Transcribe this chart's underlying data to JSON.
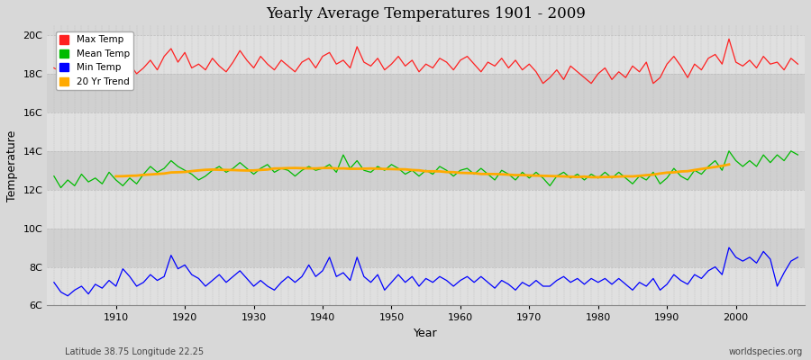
{
  "title": "Yearly Average Temperatures 1901 - 2009",
  "xlabel": "Year",
  "ylabel": "Temperature",
  "start_year": 1901,
  "end_year": 2009,
  "lat": "Latitude 38.75 Longitude 22.25",
  "watermark": "worldspecies.org",
  "ylim": [
    6,
    20.5
  ],
  "yticks": [
    6,
    8,
    10,
    12,
    14,
    16,
    18,
    20
  ],
  "ytick_labels": [
    "6C",
    "8C",
    "10C",
    "12C",
    "14C",
    "16C",
    "18C",
    "20C"
  ],
  "bg_color": "#d8d8d8",
  "plot_bg_color": "#d8d8d8",
  "band_color_light": "#e8e8e8",
  "band_color_dark": "#d0d0d0",
  "grid_color": "#bbbbbb",
  "colors": {
    "max": "#ff2020",
    "mean": "#00bb00",
    "min": "#0000ff",
    "trend": "#ffaa00"
  },
  "legend_labels": [
    "Max Temp",
    "Mean Temp",
    "Min Temp",
    "20 Yr Trend"
  ],
  "max_temps": [
    18.3,
    18.1,
    18.5,
    18.0,
    18.6,
    18.2,
    18.8,
    18.4,
    19.2,
    18.7,
    18.1,
    18.5,
    18.0,
    18.3,
    18.7,
    18.2,
    18.9,
    19.3,
    18.6,
    19.1,
    18.3,
    18.5,
    18.2,
    18.8,
    18.4,
    18.1,
    18.6,
    19.2,
    18.7,
    18.3,
    18.9,
    18.5,
    18.2,
    18.7,
    18.4,
    18.1,
    18.6,
    18.8,
    18.3,
    18.9,
    19.1,
    18.5,
    18.7,
    18.3,
    19.4,
    18.6,
    18.4,
    18.8,
    18.2,
    18.5,
    18.9,
    18.4,
    18.7,
    18.1,
    18.5,
    18.3,
    18.8,
    18.6,
    18.2,
    18.7,
    18.9,
    18.5,
    18.1,
    18.6,
    18.4,
    18.8,
    18.3,
    18.7,
    18.2,
    18.5,
    18.1,
    17.5,
    17.8,
    18.2,
    17.7,
    18.4,
    18.1,
    17.8,
    17.5,
    18.0,
    18.3,
    17.7,
    18.1,
    17.8,
    18.4,
    18.1,
    18.6,
    17.5,
    17.8,
    18.5,
    18.9,
    18.4,
    17.8,
    18.5,
    18.2,
    18.8,
    19.0,
    18.5,
    19.8,
    18.6,
    18.4,
    18.7,
    18.3,
    18.9,
    18.5,
    18.6,
    18.2,
    18.8,
    18.5
  ],
  "mean_temps": [
    12.7,
    12.1,
    12.5,
    12.2,
    12.8,
    12.4,
    12.6,
    12.3,
    12.9,
    12.5,
    12.2,
    12.6,
    12.3,
    12.8,
    13.2,
    12.9,
    13.1,
    13.5,
    13.2,
    13.0,
    12.8,
    12.5,
    12.7,
    13.0,
    13.2,
    12.9,
    13.1,
    13.4,
    13.1,
    12.8,
    13.1,
    13.3,
    12.9,
    13.1,
    13.0,
    12.7,
    13.0,
    13.2,
    13.0,
    13.1,
    13.3,
    12.9,
    13.8,
    13.1,
    13.5,
    13.0,
    12.9,
    13.2,
    13.0,
    13.3,
    13.1,
    12.8,
    13.0,
    12.7,
    13.0,
    12.8,
    13.2,
    13.0,
    12.7,
    13.0,
    13.1,
    12.8,
    13.1,
    12.8,
    12.5,
    13.0,
    12.8,
    12.5,
    12.9,
    12.6,
    12.9,
    12.6,
    12.2,
    12.7,
    12.9,
    12.6,
    12.8,
    12.5,
    12.8,
    12.6,
    12.9,
    12.6,
    12.9,
    12.6,
    12.3,
    12.7,
    12.5,
    12.9,
    12.3,
    12.6,
    13.1,
    12.7,
    12.5,
    13.0,
    12.8,
    13.2,
    13.5,
    13.0,
    14.0,
    13.5,
    13.2,
    13.5,
    13.2,
    13.8,
    13.4,
    13.8,
    13.5,
    14.0,
    13.8
  ],
  "min_temps": [
    7.2,
    6.7,
    6.5,
    6.8,
    7.0,
    6.6,
    7.1,
    6.9,
    7.3,
    7.0,
    7.9,
    7.5,
    7.0,
    7.2,
    7.6,
    7.3,
    7.5,
    8.6,
    7.9,
    8.1,
    7.6,
    7.4,
    7.0,
    7.3,
    7.6,
    7.2,
    7.5,
    7.8,
    7.4,
    7.0,
    7.3,
    7.0,
    6.8,
    7.2,
    7.5,
    7.2,
    7.5,
    8.1,
    7.5,
    7.8,
    8.5,
    7.5,
    7.7,
    7.3,
    8.5,
    7.5,
    7.2,
    7.6,
    6.8,
    7.2,
    7.6,
    7.2,
    7.5,
    7.0,
    7.4,
    7.2,
    7.5,
    7.3,
    7.0,
    7.3,
    7.5,
    7.2,
    7.5,
    7.2,
    6.9,
    7.3,
    7.1,
    6.8,
    7.2,
    7.0,
    7.3,
    7.0,
    7.0,
    7.3,
    7.5,
    7.2,
    7.4,
    7.1,
    7.4,
    7.2,
    7.4,
    7.1,
    7.4,
    7.1,
    6.8,
    7.2,
    7.0,
    7.4,
    6.8,
    7.1,
    7.6,
    7.3,
    7.1,
    7.6,
    7.4,
    7.8,
    8.0,
    7.6,
    9.0,
    8.5,
    8.3,
    8.5,
    8.2,
    8.8,
    8.4,
    7.0,
    7.7,
    8.3,
    8.5
  ]
}
